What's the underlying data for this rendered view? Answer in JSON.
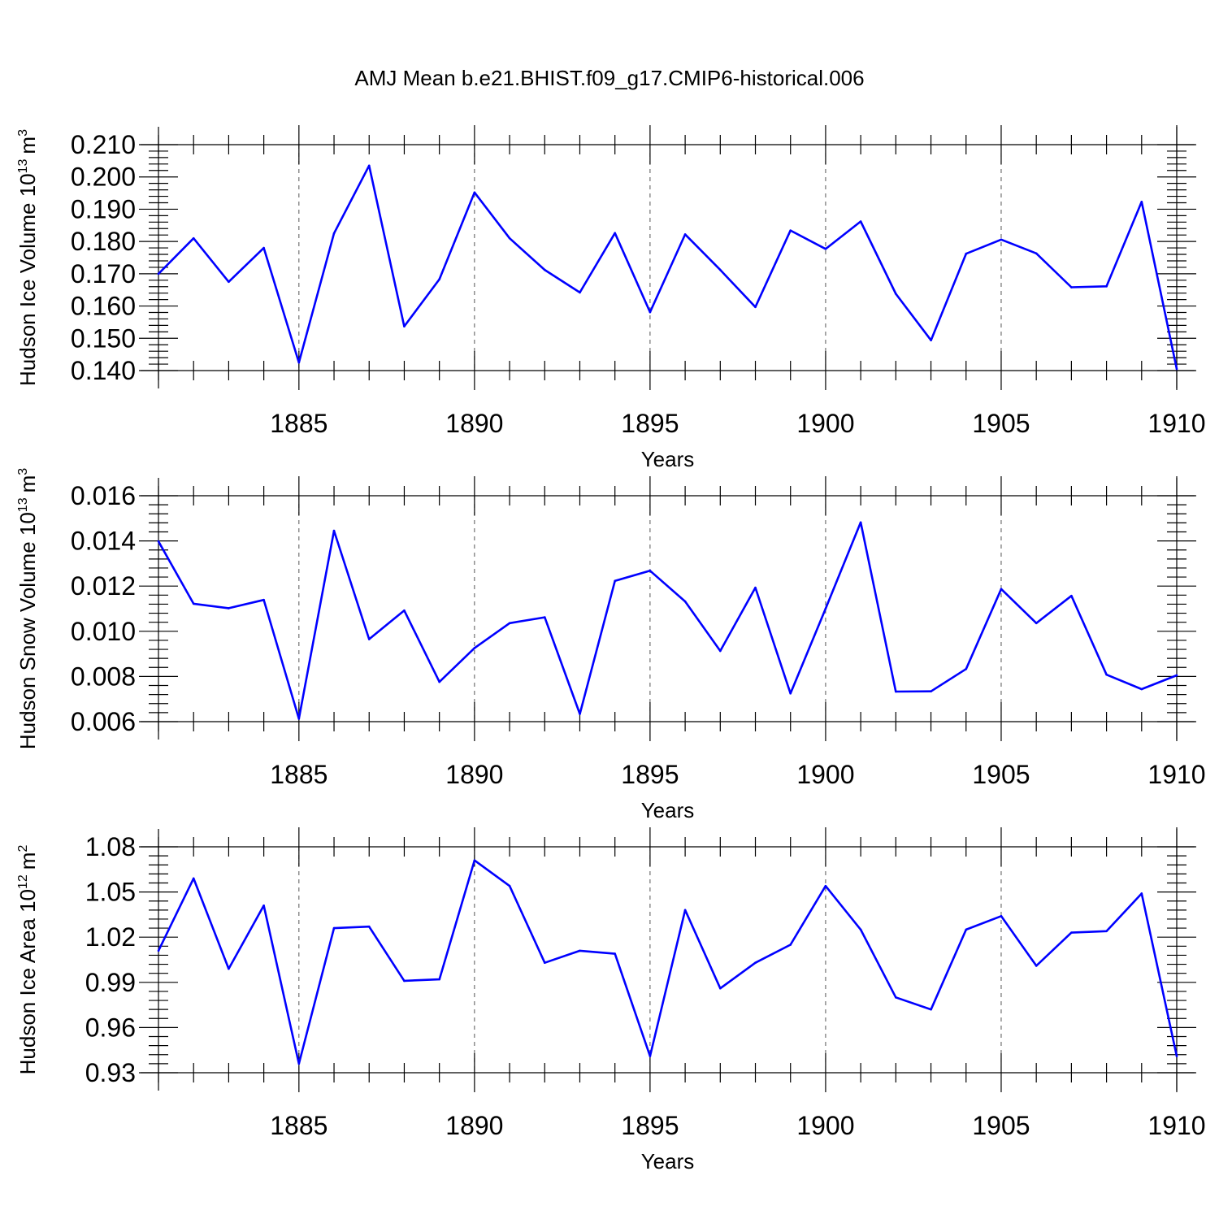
{
  "title": "AMJ Mean b.e21.BHIST.f09_g17.CMIP6-historical.006",
  "line_color": "#0000ff",
  "chart_data": [
    {
      "type": "line",
      "ylabel_text": "Hudson Ice Volume 10",
      "ylabel_exp": "13",
      "ylabel_unit": "m",
      "ylabel_unit_exp": "3",
      "xlabel": "Years",
      "xlim": [
        1881,
        1910
      ],
      "ylim": [
        0.14,
        0.21
      ],
      "xticks": [
        1885,
        1890,
        1895,
        1900,
        1905,
        1910
      ],
      "xtick_labels": [
        "1885",
        "1890",
        "1895",
        "1900",
        "1905",
        "1910"
      ],
      "yticks": [
        0.14,
        0.15,
        0.16,
        0.17,
        0.18,
        0.19,
        0.2,
        0.21
      ],
      "ytick_labels": [
        "0.140",
        "0.150",
        "0.160",
        "0.170",
        "0.180",
        "0.190",
        "0.200",
        "0.210"
      ],
      "grid": "vertical dashed at major ticks",
      "x": [
        1881,
        1882,
        1883,
        1884,
        1885,
        1886,
        1887,
        1888,
        1889,
        1890,
        1891,
        1892,
        1893,
        1894,
        1895,
        1896,
        1897,
        1898,
        1899,
        1900,
        1901,
        1902,
        1903,
        1904,
        1905,
        1906,
        1907,
        1908,
        1909,
        1910
      ],
      "values": [
        0.17,
        0.181,
        0.1675,
        0.178,
        0.1425,
        0.1825,
        0.2035,
        0.1537,
        0.1683,
        0.1952,
        0.181,
        0.1712,
        0.1642,
        0.1826,
        0.1581,
        0.1822,
        0.1712,
        0.1597,
        0.1834,
        0.1777,
        0.1862,
        0.1638,
        0.1494,
        0.1762,
        0.1806,
        0.1763,
        0.1658,
        0.1661,
        0.1923,
        0.1405
      ]
    },
    {
      "type": "line",
      "ylabel_text": "Hudson Snow Volume 10",
      "ylabel_exp": "13",
      "ylabel_unit": "m",
      "ylabel_unit_exp": "3",
      "xlabel": "Years",
      "xlim": [
        1881,
        1910
      ],
      "ylim": [
        0.006,
        0.016
      ],
      "xticks": [
        1885,
        1890,
        1895,
        1900,
        1905,
        1910
      ],
      "xtick_labels": [
        "1885",
        "1890",
        "1895",
        "1900",
        "1905",
        "1910"
      ],
      "yticks": [
        0.006,
        0.008,
        0.01,
        0.012,
        0.014,
        0.016
      ],
      "ytick_labels": [
        "0.006",
        "0.008",
        "0.010",
        "0.012",
        "0.014",
        "0.016"
      ],
      "grid": "vertical dashed at major ticks",
      "x": [
        1881,
        1882,
        1883,
        1884,
        1885,
        1886,
        1887,
        1888,
        1889,
        1890,
        1891,
        1892,
        1893,
        1894,
        1895,
        1896,
        1897,
        1898,
        1899,
        1900,
        1901,
        1902,
        1903,
        1904,
        1905,
        1906,
        1907,
        1908,
        1909,
        1910
      ],
      "values": [
        0.01398,
        0.01122,
        0.01102,
        0.01139,
        0.00613,
        0.01445,
        0.00965,
        0.01092,
        0.00776,
        0.00926,
        0.01036,
        0.01062,
        0.00634,
        0.01223,
        0.01268,
        0.01132,
        0.00913,
        0.01193,
        0.00725,
        0.011,
        0.01482,
        0.00733,
        0.00734,
        0.00833,
        0.01187,
        0.01036,
        0.01157,
        0.00808,
        0.00744,
        0.00805
      ]
    },
    {
      "type": "line",
      "ylabel_text": "Hudson Ice Area 10",
      "ylabel_exp": "12",
      "ylabel_unit": "m",
      "ylabel_unit_exp": "2",
      "xlabel": "Years",
      "xlim": [
        1881,
        1910
      ],
      "ylim": [
        0.93,
        1.08
      ],
      "xticks": [
        1885,
        1890,
        1895,
        1900,
        1905,
        1910
      ],
      "xtick_labels": [
        "1885",
        "1890",
        "1895",
        "1900",
        "1905",
        "1910"
      ],
      "yticks": [
        0.93,
        0.96,
        0.99,
        1.02,
        1.05,
        1.08
      ],
      "ytick_labels": [
        "0.93",
        "0.96",
        "0.99",
        "1.02",
        "1.05",
        "1.08"
      ],
      "grid": "vertical dashed at major ticks",
      "x": [
        1881,
        1882,
        1883,
        1884,
        1885,
        1886,
        1887,
        1888,
        1889,
        1890,
        1891,
        1892,
        1893,
        1894,
        1895,
        1896,
        1897,
        1898,
        1899,
        1900,
        1901,
        1902,
        1903,
        1904,
        1905,
        1906,
        1907,
        1908,
        1909,
        1910
      ],
      "values": [
        1.011,
        1.059,
        0.999,
        1.041,
        0.936,
        1.026,
        1.027,
        0.991,
        0.992,
        1.071,
        1.054,
        1.003,
        1.011,
        1.009,
        0.941,
        1.038,
        0.986,
        1.003,
        1.015,
        1.054,
        1.025,
        0.98,
        0.972,
        1.025,
        1.034,
        1.001,
        1.023,
        1.024,
        1.049,
        0.941
      ]
    }
  ]
}
